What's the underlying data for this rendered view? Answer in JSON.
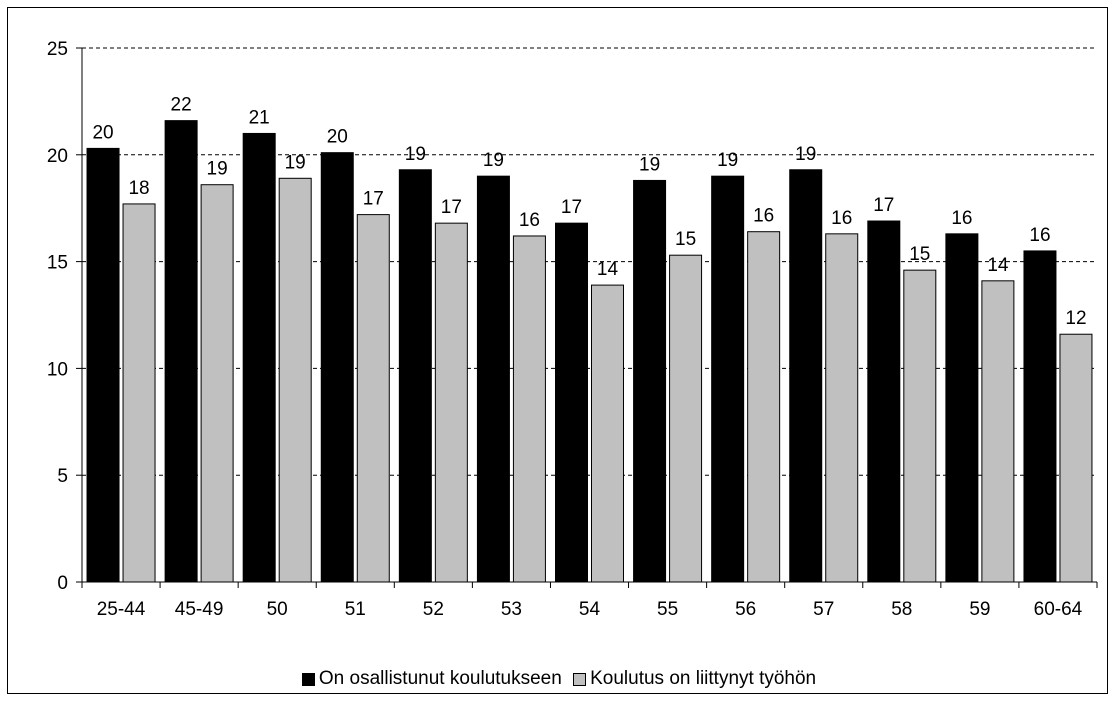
{
  "chart_data": {
    "type": "bar",
    "categories": [
      "25-44",
      "45-49",
      "50",
      "51",
      "52",
      "53",
      "54",
      "55",
      "56",
      "57",
      "58",
      "59",
      "60-64"
    ],
    "series": [
      {
        "name": "On osallistunut koulutukseen",
        "color": "#000000",
        "values": [
          20.3,
          21.6,
          21.0,
          20.1,
          19.3,
          19.0,
          16.8,
          18.8,
          19.0,
          19.3,
          16.9,
          16.3,
          15.5
        ],
        "labels": [
          "20",
          "22",
          "21",
          "20",
          "19",
          "19",
          "17",
          "19",
          "19",
          "19",
          "17",
          "16",
          "16"
        ]
      },
      {
        "name": "Koulutus on liittynyt työhön",
        "color": "#c0c0c0",
        "values": [
          17.7,
          18.6,
          18.9,
          17.2,
          16.8,
          16.2,
          13.9,
          15.3,
          16.4,
          16.3,
          14.6,
          14.1,
          11.6
        ],
        "labels": [
          "18",
          "19",
          "19",
          "17",
          "17",
          "16",
          "14",
          "15",
          "16",
          "16",
          "15",
          "14",
          "12"
        ]
      }
    ],
    "ylim": [
      0,
      25
    ],
    "yticks": [
      "0",
      "5",
      "10",
      "15",
      "20",
      "25"
    ],
    "grid": "dashed horizontal",
    "legend_position": "bottom"
  }
}
